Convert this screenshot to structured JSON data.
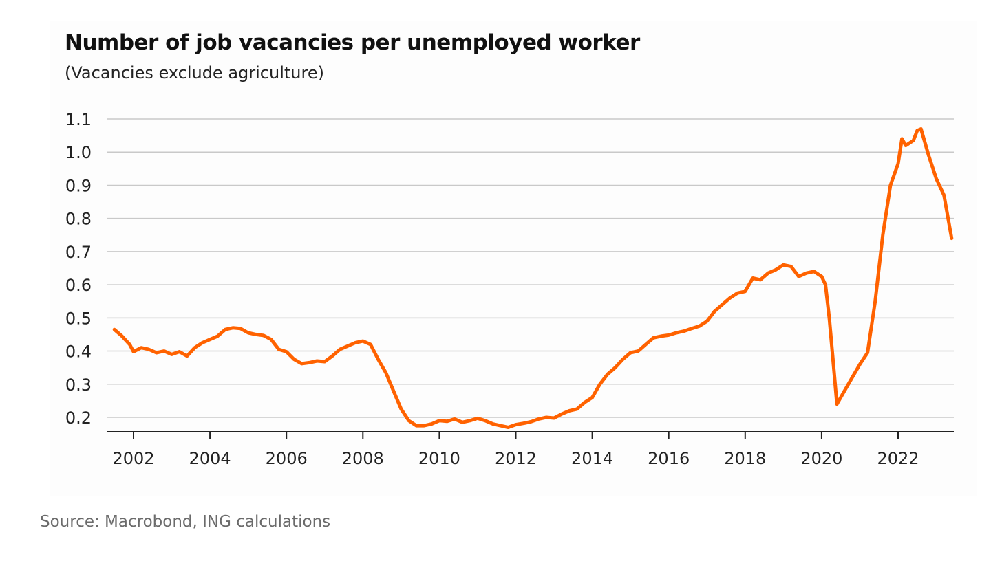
{
  "chart_data": {
    "type": "line",
    "title": "Number of job vacancies per unemployed worker",
    "subtitle": "(Vacancies exclude agriculture)",
    "source": "Source: Macrobond, ING calculations",
    "xlabel": "",
    "ylabel": "",
    "xlim": [
      2001.3,
      2023.6
    ],
    "ylim": [
      0.16,
      1.1
    ],
    "x_ticks": [
      "2002",
      "2004",
      "2006",
      "2008",
      "2010",
      "2012",
      "2014",
      "2016",
      "2018",
      "2020",
      "2022"
    ],
    "y_ticks": [
      "0.2",
      "0.3",
      "0.4",
      "0.5",
      "0.6",
      "0.7",
      "0.8",
      "0.9",
      "1.0",
      "1.1"
    ],
    "grid": "horizontal",
    "line_color": "#FF6200",
    "grid_color": "#c9c9c9",
    "series": [
      {
        "x": [
          2001.5,
          2001.7,
          2001.9,
          2002.0,
          2002.2,
          2002.4,
          2002.6,
          2002.8,
          2003.0,
          2003.2,
          2003.4,
          2003.6,
          2003.8,
          2004.0,
          2004.2,
          2004.4,
          2004.6,
          2004.8,
          2005.0,
          2005.2,
          2005.4,
          2005.6,
          2005.8,
          2006.0,
          2006.2,
          2006.4,
          2006.6,
          2006.8,
          2007.0,
          2007.2,
          2007.4,
          2007.6,
          2007.8,
          2008.0,
          2008.2,
          2008.4,
          2008.6,
          2008.8,
          2009.0,
          2009.2,
          2009.4,
          2009.6,
          2009.8,
          2010.0,
          2010.2,
          2010.4,
          2010.6,
          2010.8,
          2011.0,
          2011.2,
          2011.4,
          2011.6,
          2011.8,
          2012.0,
          2012.2,
          2012.4,
          2012.6,
          2012.8,
          2013.0,
          2013.2,
          2013.4,
          2013.6,
          2013.8,
          2014.0,
          2014.2,
          2014.4,
          2014.6,
          2014.8,
          2015.0,
          2015.2,
          2015.4,
          2015.6,
          2015.8,
          2016.0,
          2016.2,
          2016.4,
          2016.6,
          2016.8,
          2017.0,
          2017.2,
          2017.4,
          2017.6,
          2017.8,
          2018.0,
          2018.2,
          2018.4,
          2018.6,
          2018.8,
          2019.0,
          2019.2,
          2019.4,
          2019.6,
          2019.8,
          2020.0,
          2020.1,
          2020.2,
          2020.3,
          2020.4,
          2020.6,
          2020.8,
          2021.0,
          2021.2,
          2021.4,
          2021.6,
          2021.8,
          2022.0,
          2022.1,
          2022.2,
          2022.4,
          2022.5,
          2022.6,
          2022.8,
          2023.0,
          2023.2,
          2023.4
        ],
        "values": [
          0.465,
          0.445,
          0.42,
          0.398,
          0.41,
          0.405,
          0.395,
          0.4,
          0.39,
          0.398,
          0.385,
          0.41,
          0.425,
          0.435,
          0.445,
          0.465,
          0.47,
          0.468,
          0.455,
          0.45,
          0.447,
          0.435,
          0.405,
          0.398,
          0.375,
          0.362,
          0.365,
          0.37,
          0.368,
          0.385,
          0.405,
          0.415,
          0.425,
          0.43,
          0.42,
          0.375,
          0.335,
          0.28,
          0.225,
          0.19,
          0.175,
          0.175,
          0.18,
          0.19,
          0.188,
          0.195,
          0.185,
          0.19,
          0.197,
          0.19,
          0.18,
          0.175,
          0.17,
          0.178,
          0.182,
          0.187,
          0.195,
          0.2,
          0.198,
          0.21,
          0.22,
          0.225,
          0.245,
          0.26,
          0.3,
          0.33,
          0.35,
          0.375,
          0.395,
          0.4,
          0.42,
          0.44,
          0.445,
          0.448,
          0.455,
          0.46,
          0.468,
          0.475,
          0.49,
          0.52,
          0.54,
          0.56,
          0.575,
          0.58,
          0.62,
          0.615,
          0.635,
          0.645,
          0.66,
          0.655,
          0.625,
          0.635,
          0.64,
          0.625,
          0.6,
          0.5,
          0.37,
          0.24,
          0.28,
          0.32,
          0.36,
          0.395,
          0.55,
          0.75,
          0.9,
          0.965,
          1.04,
          1.02,
          1.035,
          1.065,
          1.07,
          0.99,
          0.92,
          0.87,
          0.74
        ]
      }
    ]
  }
}
